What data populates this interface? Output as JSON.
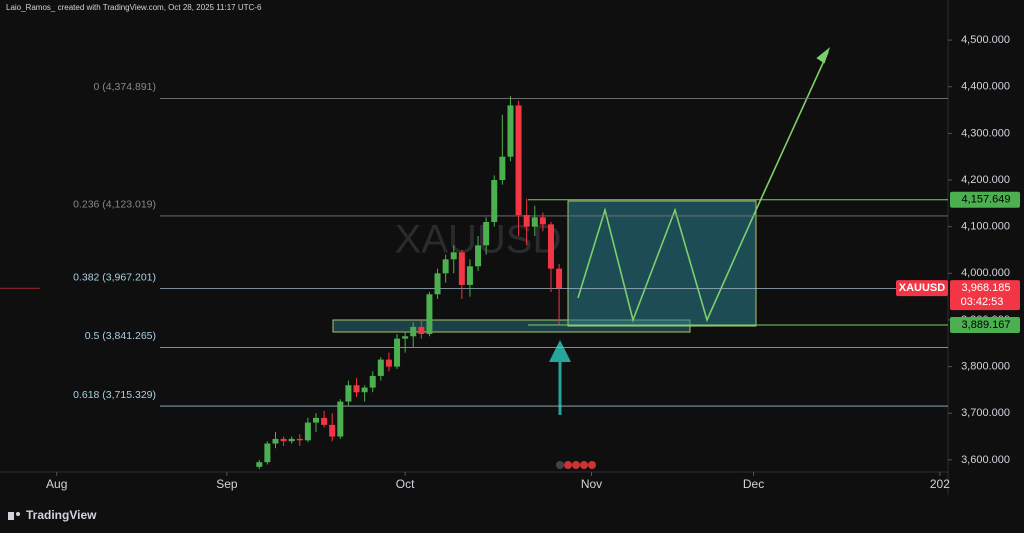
{
  "chart_data": {
    "type": "candlestick",
    "header": "Laio_Ramos_ created with TradingView.com, Oct 28, 2025 11:17 UTC-6",
    "watermark": "XAUUSD",
    "brand": "TradingView",
    "up_color": "#4caf50",
    "down_color": "#f23645",
    "grid": false,
    "xlim": [
      -7,
      110
    ],
    "ylim": [
      3574,
      4586
    ],
    "xticks": [
      {
        "value": 0,
        "label": "Aug"
      },
      {
        "value": 21,
        "label": "Sep"
      },
      {
        "value": 43,
        "label": "Oct"
      },
      {
        "value": 66,
        "label": "Nov"
      },
      {
        "value": 86,
        "label": "Dec"
      },
      {
        "value": 109,
        "label": "202"
      }
    ],
    "yticks": [
      {
        "value": 3600,
        "label": "3,600.000"
      },
      {
        "value": 3700,
        "label": "3,700.000"
      },
      {
        "value": 3800,
        "label": "3,800.000"
      },
      {
        "value": 3900,
        "label": "3,900.000"
      },
      {
        "value": 4000,
        "label": "4,000.000"
      },
      {
        "value": 4100,
        "label": "4,100.000"
      },
      {
        "value": 4200,
        "label": "4,200.000"
      },
      {
        "value": 4300,
        "label": "4,300.000"
      },
      {
        "value": 4400,
        "label": "4,400.000"
      },
      {
        "value": 4500,
        "label": "4,500.000"
      }
    ],
    "x": [
      25,
      26,
      27,
      28,
      29,
      30,
      31,
      32,
      33,
      34,
      35,
      36,
      37,
      38,
      39,
      40,
      41,
      42,
      43,
      44,
      45,
      46,
      47,
      48,
      49,
      50,
      51,
      52,
      53,
      54,
      55,
      56,
      57,
      58,
      59,
      60,
      61,
      62
    ],
    "open": [
      3585,
      3595,
      3635,
      3645,
      3640,
      3645,
      3642,
      3680,
      3690,
      3675,
      3650,
      3725,
      3760,
      3745,
      3755,
      3780,
      3815,
      3800,
      3860,
      3865,
      3885,
      3870,
      3955,
      4000,
      4030,
      4045,
      3975,
      4015,
      4060,
      4110,
      4200,
      4250,
      4360,
      4125,
      4100,
      4120,
      4105,
      4010
    ],
    "high": [
      3600,
      3640,
      3660,
      3650,
      3650,
      3655,
      3690,
      3700,
      3705,
      3700,
      3730,
      3770,
      3775,
      3760,
      3790,
      3820,
      3830,
      3870,
      3875,
      3895,
      3900,
      3960,
      4010,
      4040,
      4060,
      4050,
      4030,
      4080,
      4120,
      4210,
      4340,
      4380,
      4370,
      4160,
      4145,
      4130,
      4110,
      4020
    ],
    "low": [
      3580,
      3590,
      3625,
      3630,
      3635,
      3630,
      3638,
      3660,
      3670,
      3640,
      3645,
      3715,
      3735,
      3725,
      3745,
      3770,
      3790,
      3795,
      3830,
      3840,
      3860,
      3865,
      3945,
      3980,
      4000,
      3945,
      3950,
      4005,
      4040,
      4100,
      4190,
      4240,
      4080,
      4060,
      4080,
      4090,
      3960,
      3890
    ],
    "close": [
      3595,
      3635,
      3645,
      3640,
      3645,
      3642,
      3680,
      3690,
      3675,
      3650,
      3725,
      3760,
      3745,
      3755,
      3780,
      3815,
      3800,
      3860,
      3865,
      3885,
      3870,
      3955,
      4000,
      4030,
      4045,
      3975,
      4015,
      4060,
      4110,
      4200,
      4250,
      4360,
      4125,
      4100,
      4120,
      4105,
      4010,
      3968
    ],
    "fib_levels": [
      {
        "value": 4374.891,
        "label": "0 (4,374.891)"
      },
      {
        "value": 4123.019,
        "label": "0.236 (4,123.019)"
      },
      {
        "value": 3967.201,
        "label": "0.382 (3,967.201)"
      },
      {
        "value": 3841.265,
        "label": "0.5 (3,841.265)"
      },
      {
        "value": 3715.329,
        "label": "0.618 (3,715.329)"
      }
    ],
    "price_tags": [
      {
        "value": 4157.649,
        "label": "4,157.649"
      },
      {
        "value": 3889.167,
        "label": "3,889.167"
      }
    ],
    "symbol": "XAUUSD",
    "last_price": {
      "value": 3968.185,
      "label": "3,968.185"
    },
    "countdown": "03:42:53"
  }
}
